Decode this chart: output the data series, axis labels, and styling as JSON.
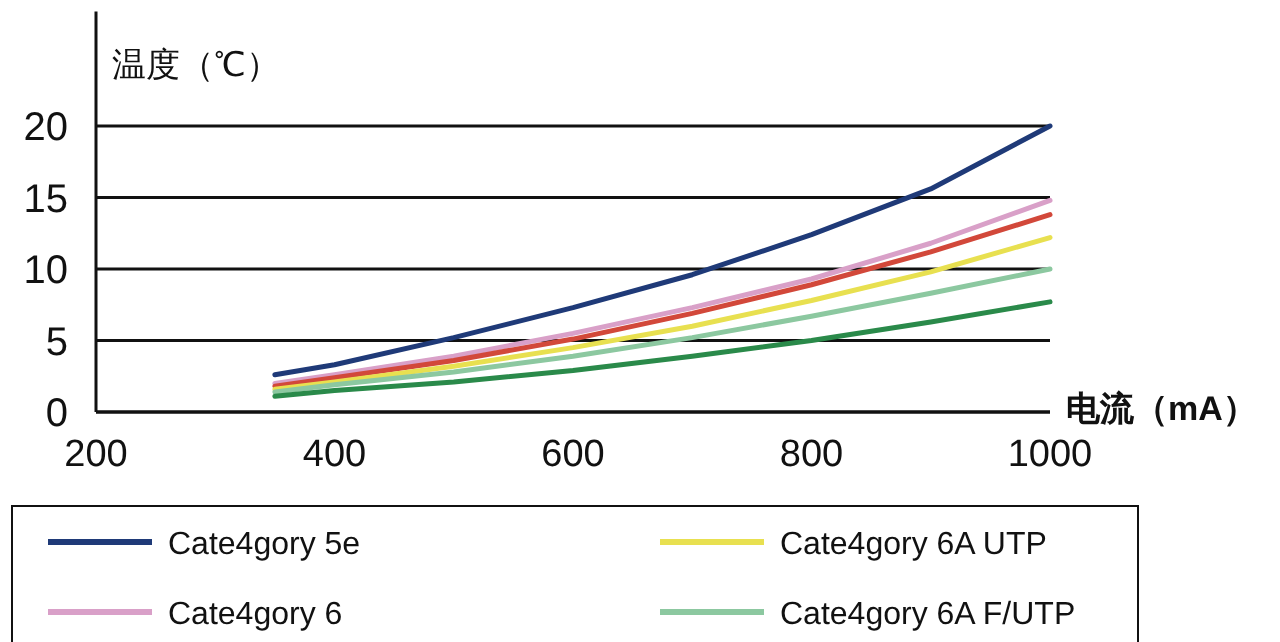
{
  "chart_data": {
    "type": "line",
    "xlabel": "电流（mA）",
    "ylabel": "温度（℃）",
    "xlim": [
      200,
      1000
    ],
    "xticks": [
      200,
      400,
      600,
      800,
      1000
    ],
    "ylim": [
      0,
      28
    ],
    "yticks": [
      0,
      5,
      10,
      15,
      20
    ],
    "grid": "y",
    "legend": "bottom",
    "line_style": "solid",
    "x": [
      350,
      400,
      500,
      600,
      700,
      800,
      900,
      1000
    ],
    "series": [
      {
        "name": "Cate4gory 5e",
        "color": "#1f3a78",
        "values": [
          2.6,
          3.3,
          5.2,
          7.3,
          9.6,
          12.4,
          15.6,
          20
        ]
      },
      {
        "name": "Cate4gory 6",
        "color": "#d9a0c8",
        "values": [
          2.0,
          2.6,
          3.9,
          5.5,
          7.3,
          9.3,
          11.8,
          14.8
        ]
      },
      {
        "color": "#d2483a",
        "values": [
          1.8,
          2.4,
          3.6,
          5.1,
          6.9,
          8.9,
          11.2,
          13.8
        ]
      },
      {
        "name": "Cate4gory 6A UTP",
        "color": "#e8e050",
        "values": [
          1.6,
          2.1,
          3.2,
          4.5,
          6.0,
          7.8,
          9.8,
          12.2
        ]
      },
      {
        "name": "Cate4gory 6A F/UTP",
        "color": "#8cc8a0",
        "values": [
          1.4,
          1.9,
          2.8,
          3.9,
          5.2,
          6.7,
          8.3,
          10
        ]
      },
      {
        "color": "#2a8a4a",
        "values": [
          1.1,
          1.5,
          2.1,
          2.9,
          3.9,
          5.0,
          6.3,
          7.7
        ]
      }
    ]
  }
}
